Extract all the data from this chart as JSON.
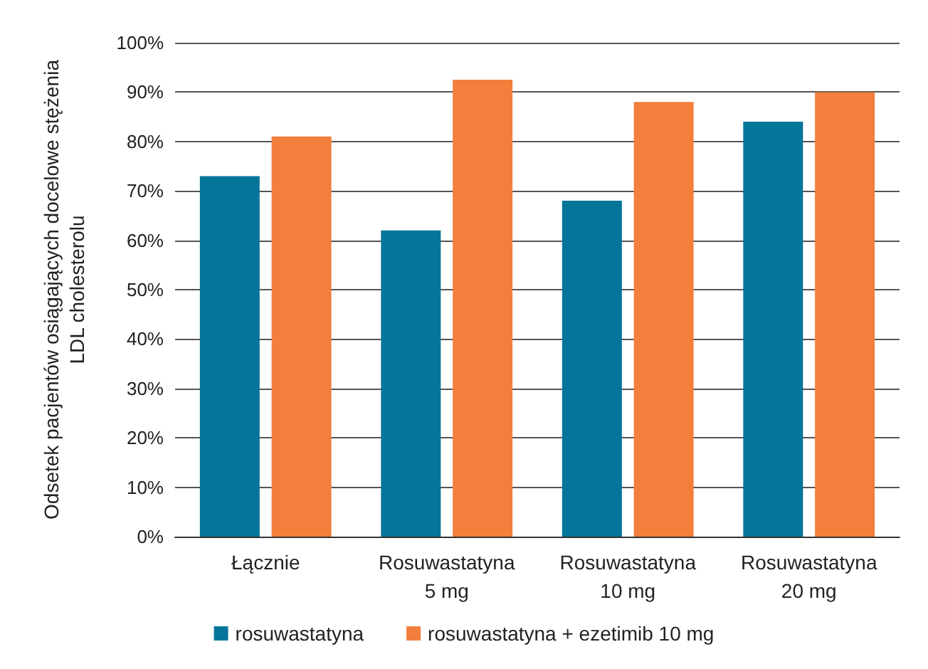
{
  "chart_data": {
    "type": "bar",
    "ylabel": "Odsetek pacjentów osiągających docelowe stężenia\nLDL cholesterolu",
    "categories": [
      "Łącznie",
      "Rosuwastatyna\n5 mg",
      "Rosuwastatyna\n10 mg",
      "Rosuwastatyna\n20 mg"
    ],
    "series": [
      {
        "name": "rosuwastatyna",
        "color": "#05759a",
        "values": [
          73,
          62,
          68,
          84
        ]
      },
      {
        "name": "rosuwastatyna + ezetimib 10 mg",
        "color": "#f27f3c",
        "values": [
          81,
          92.5,
          88,
          90
        ]
      }
    ],
    "ylim": [
      0,
      100
    ],
    "yticks": [
      {
        "value": 0,
        "label": "0%"
      },
      {
        "value": 10,
        "label": "10%"
      },
      {
        "value": 20,
        "label": "20%"
      },
      {
        "value": 30,
        "label": "30%"
      },
      {
        "value": 40,
        "label": "40%"
      },
      {
        "value": 50,
        "label": "50%"
      },
      {
        "value": 60,
        "label": "60%"
      },
      {
        "value": 70,
        "label": "70%"
      },
      {
        "value": 80,
        "label": "80%"
      },
      {
        "value": 90,
        "label": "90%"
      },
      {
        "value": 100,
        "label": "100%"
      }
    ],
    "grid": "y",
    "legend": "bottom"
  }
}
